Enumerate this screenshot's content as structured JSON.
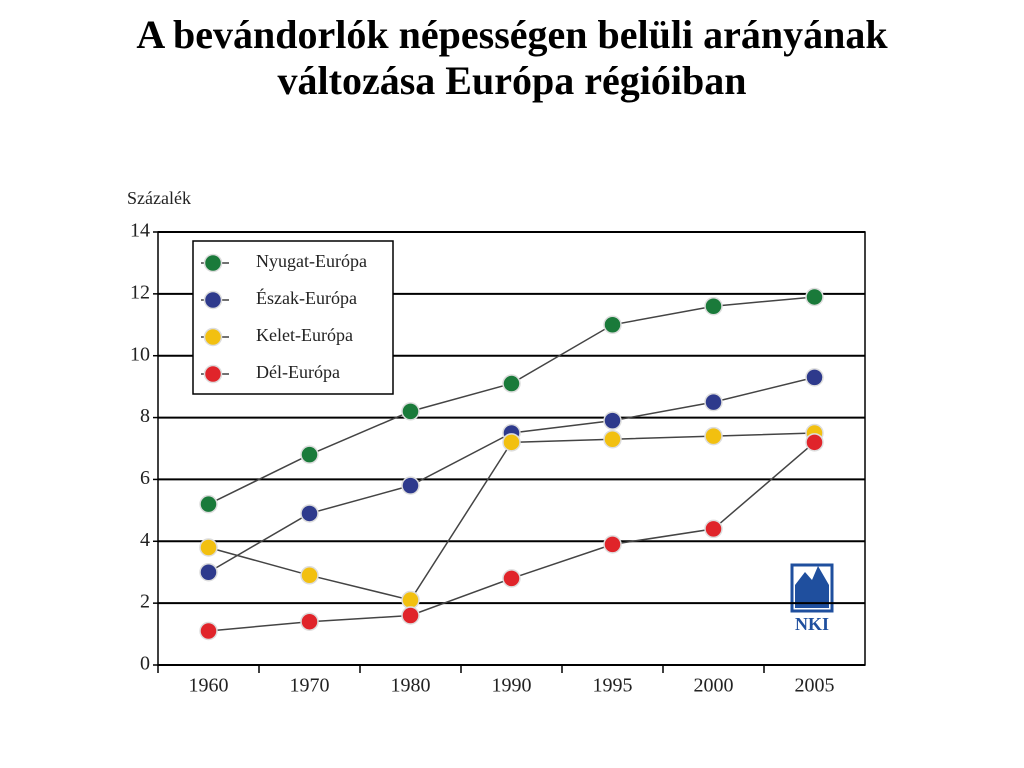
{
  "chart_data": {
    "type": "line",
    "title": "A bevándorlók népességen belüli arányának változása Európa régióiban",
    "y_label": "Százalék",
    "categories": [
      "1960",
      "1970",
      "1980",
      "1990",
      "1995",
      "2000",
      "2005"
    ],
    "series": [
      {
        "name": "Nyugat-Európa",
        "color": "#1a7a3a",
        "values": [
          5.2,
          6.8,
          8.2,
          9.1,
          11.0,
          11.6,
          11.9
        ]
      },
      {
        "name": "Észak-Európa",
        "color": "#2e3a8c",
        "values": [
          3.0,
          4.9,
          5.8,
          7.5,
          7.9,
          8.5,
          9.3
        ]
      },
      {
        "name": "Kelet-Európa",
        "color": "#f2c010",
        "values": [
          3.8,
          2.9,
          2.1,
          7.2,
          7.3,
          7.4,
          7.5
        ]
      },
      {
        "name": "Dél-Európa",
        "color": "#e0242a",
        "values": [
          1.1,
          1.4,
          1.6,
          2.8,
          3.9,
          4.4,
          7.2
        ]
      }
    ],
    "ylim": [
      0,
      14
    ],
    "yticks": [
      0,
      2,
      4,
      6,
      8,
      10,
      12,
      14
    ],
    "grid": true,
    "legend": "upper left",
    "logo_text": "NKI"
  }
}
